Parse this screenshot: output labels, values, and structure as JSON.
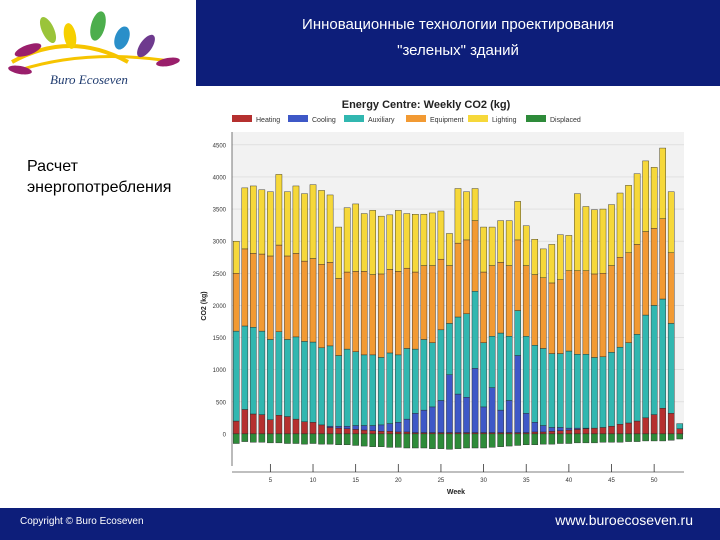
{
  "header": {
    "title_line1": "Инновационные технологии проектирования",
    "title_line2": "\"зеленых\" зданий"
  },
  "logo": {
    "text": "Buro Ecoseven"
  },
  "subtitle_line1": "Расчет",
  "subtitle_line2": "энергопотребления",
  "footer": {
    "copyright": "Copyright © Buro Ecoseven",
    "website": "www.buroecoseven.ru"
  },
  "colors": {
    "header_bg": "#0d1e7a",
    "heating": "#b5302f",
    "cooling": "#3e58c7",
    "auxiliary": "#31b7b0",
    "equipment": "#f29a33",
    "lighting": "#f6d83a",
    "displaced": "#2e8b3a"
  },
  "chart_data": {
    "type": "bar",
    "stacked": true,
    "title": "Energy Centre: Weekly CO2 (kg)",
    "xlabel": "Week",
    "ylabel": "CO2 (kg)",
    "ylim": [
      -500,
      4700
    ],
    "yticks": [
      0,
      500,
      1000,
      1500,
      2000,
      2500,
      3000,
      3500,
      4000,
      4500
    ],
    "xticks": [
      5,
      10,
      15,
      20,
      25,
      30,
      35,
      40,
      45,
      50
    ],
    "legend": [
      "Heating",
      "Cooling",
      "Auxiliary",
      "Equipment",
      "Lighting",
      "Displaced"
    ],
    "weeks": [
      1,
      2,
      3,
      4,
      5,
      6,
      7,
      8,
      9,
      10,
      11,
      12,
      13,
      14,
      15,
      16,
      17,
      18,
      19,
      20,
      21,
      22,
      23,
      24,
      25,
      26,
      27,
      28,
      29,
      30,
      31,
      32,
      33,
      34,
      35,
      36,
      37,
      38,
      39,
      40,
      41,
      42,
      43,
      44,
      45,
      46,
      47,
      48,
      49,
      50,
      51,
      52,
      53
    ],
    "series": [
      {
        "name": "Heating",
        "values": [
          200,
          380,
          310,
          300,
          220,
          290,
          270,
          230,
          190,
          180,
          140,
          100,
          90,
          80,
          70,
          60,
          50,
          40,
          40,
          30,
          30,
          20,
          20,
          20,
          20,
          20,
          20,
          20,
          20,
          20,
          20,
          20,
          20,
          20,
          20,
          30,
          30,
          40,
          50,
          60,
          70,
          80,
          90,
          100,
          120,
          150,
          170,
          200,
          250,
          300,
          400,
          320,
          80
        ]
      },
      {
        "name": "Cooling",
        "values": [
          0,
          0,
          0,
          0,
          0,
          0,
          0,
          0,
          0,
          0,
          0,
          20,
          30,
          40,
          60,
          70,
          80,
          100,
          120,
          150,
          200,
          300,
          350,
          400,
          500,
          900,
          600,
          550,
          1000,
          400,
          700,
          350,
          500,
          1200,
          300,
          150,
          100,
          60,
          50,
          30,
          20,
          10,
          0,
          0,
          0,
          0,
          0,
          0,
          0,
          0,
          0,
          0,
          0
        ]
      },
      {
        "name": "Auxiliary",
        "values": [
          1400,
          1300,
          1350,
          1300,
          1250,
          1300,
          1200,
          1280,
          1250,
          1250,
          1200,
          1250,
          1100,
          1200,
          1150,
          1100,
          1100,
          1050,
          1100,
          1050,
          1100,
          1000,
          1100,
          1000,
          1100,
          800,
          1200,
          1300,
          1200,
          1000,
          800,
          1200,
          1000,
          700,
          1200,
          1200,
          1200,
          1150,
          1150,
          1200,
          1150,
          1150,
          1100,
          1100,
          1150,
          1200,
          1250,
          1350,
          1600,
          1700,
          1700,
          1400,
          80
        ]
      },
      {
        "name": "Equipment",
        "values": [
          900,
          1200,
          1150,
          1200,
          1300,
          1350,
          1300,
          1300,
          1250,
          1300,
          1300,
          1300,
          1200,
          1200,
          1250,
          1300,
          1250,
          1300,
          1300,
          1300,
          1250,
          1200,
          1150,
          1200,
          1100,
          900,
          1150,
          1150,
          1100,
          1100,
          1100,
          1100,
          1100,
          1100,
          1100,
          1100,
          1100,
          1100,
          1150,
          1250,
          1300,
          1300,
          1300,
          1300,
          1350,
          1400,
          1400,
          1400,
          1300,
          1200,
          1250,
          1100,
          0
        ]
      },
      {
        "name": "Lighting",
        "values": [
          500,
          950,
          1050,
          1000,
          1000,
          1100,
          1000,
          1050,
          1050,
          1150,
          1150,
          1050,
          800,
          1000,
          1050,
          900,
          1000,
          900,
          850,
          950,
          850,
          900,
          800,
          820,
          750,
          500,
          850,
          750,
          500,
          700,
          600,
          650,
          700,
          600,
          620,
          550,
          450,
          600,
          700,
          550,
          1200,
          1000,
          1000,
          1000,
          950,
          1000,
          1050,
          1100,
          1100,
          950,
          1100,
          950,
          0
        ]
      },
      {
        "name": "Displaced",
        "values": [
          -150,
          -120,
          -130,
          -130,
          -140,
          -140,
          -150,
          -150,
          -160,
          -150,
          -160,
          -160,
          -170,
          -170,
          -180,
          -190,
          -200,
          -200,
          -210,
          -210,
          -220,
          -220,
          -220,
          -230,
          -230,
          -240,
          -230,
          -220,
          -220,
          -220,
          -210,
          -200,
          -190,
          -180,
          -170,
          -170,
          -160,
          -160,
          -150,
          -150,
          -140,
          -140,
          -140,
          -130,
          -130,
          -130,
          -120,
          -120,
          -110,
          -110,
          -110,
          -100,
          -80
        ]
      }
    ]
  }
}
